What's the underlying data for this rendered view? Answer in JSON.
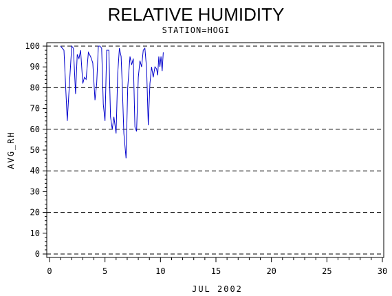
{
  "chart_data": {
    "type": "line",
    "title": "RELATIVE HUMIDITY",
    "subtitle": "STATION=HOGI",
    "xlabel": "JUL 2002",
    "ylabel": "AVG_RH",
    "xlim": [
      0,
      30
    ],
    "ylim": [
      0,
      100
    ],
    "xticks": [
      0,
      5,
      10,
      15,
      20,
      25,
      30
    ],
    "yticks": [
      0,
      10,
      20,
      30,
      40,
      50,
      60,
      70,
      80,
      90,
      100
    ],
    "dashed_gridlines_y": [
      0,
      20,
      40,
      60,
      80,
      100
    ],
    "line_color": "#0000cc",
    "series": [
      {
        "x": [
          1.0,
          1.3,
          1.6,
          1.8,
          2.0,
          2.15,
          2.35,
          2.5,
          2.65,
          2.8,
          3.0,
          3.15,
          3.3,
          3.5,
          3.7,
          3.9,
          4.1,
          4.25,
          4.4,
          4.55,
          4.7,
          4.85,
          5.0,
          5.15,
          5.35,
          5.5,
          5.65,
          5.8,
          6.0,
          6.15,
          6.3,
          6.45,
          6.55,
          6.7,
          6.9,
          7.05,
          7.25,
          7.4,
          7.55,
          7.7,
          7.85,
          8.0,
          8.15,
          8.3,
          8.45,
          8.6,
          8.75,
          8.9,
          9.05,
          9.2,
          9.35,
          9.5,
          9.65,
          9.75,
          9.85,
          9.95,
          10.05,
          10.15,
          10.25
        ],
        "values": [
          100,
          98,
          64,
          82,
          100,
          99,
          77,
          96,
          94,
          98,
          82,
          85,
          84,
          97,
          95,
          92,
          74,
          82,
          100,
          100,
          99,
          72,
          64,
          98,
          98,
          66,
          60,
          66,
          58,
          87,
          99,
          95,
          82,
          58,
          46,
          80,
          95,
          91,
          94,
          61,
          59,
          85,
          93,
          90,
          98,
          99,
          89,
          62,
          82,
          90,
          85,
          90,
          89,
          86,
          95,
          90,
          95,
          88,
          97
        ]
      }
    ]
  }
}
